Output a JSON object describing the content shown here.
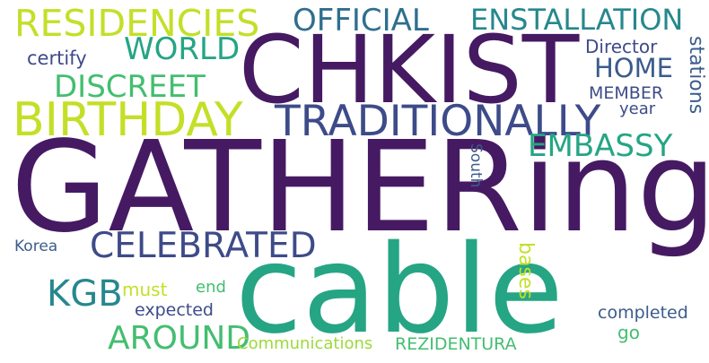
{
  "colors": {
    "background": "#ffffff",
    "deep_purple": "#461a62",
    "indigo": "#3e4b89",
    "slate_blue": "#3b5c8c",
    "teal_blue": "#2f6f8e",
    "teal": "#26888d",
    "sea_green": "#25a584",
    "green": "#43be70",
    "light_green": "#9bd93c",
    "yellow_green": "#c4df27",
    "yellow": "#dfe318"
  },
  "words": {
    "gathering": "GATHERing",
    "cable": "cable",
    "chkist": "CHKIST",
    "birthday": "BIRTHDAY",
    "traditionally": "TRADITIONALLY",
    "residencies": "RESIDENCIES",
    "official": "OFFICIAL",
    "enstallation": "ENSTALLATION",
    "world": "WORLD",
    "home": "HOME",
    "director": "Director",
    "certify": "certify",
    "discreet": "DISCREET",
    "member": "MEMBER",
    "year": "year",
    "stations": "stations",
    "embassy": "EMBASSY",
    "south": "South",
    "celebrated": "CELEBRATED",
    "korea": "Korea",
    "kgb": "KGB",
    "must": "must",
    "end": "end",
    "bases": "bases",
    "expected": "expected",
    "completed": "completed",
    "around": "AROUND",
    "communications": "Communications",
    "rezidentura": "REZIDENTURA",
    "go": "go"
  }
}
